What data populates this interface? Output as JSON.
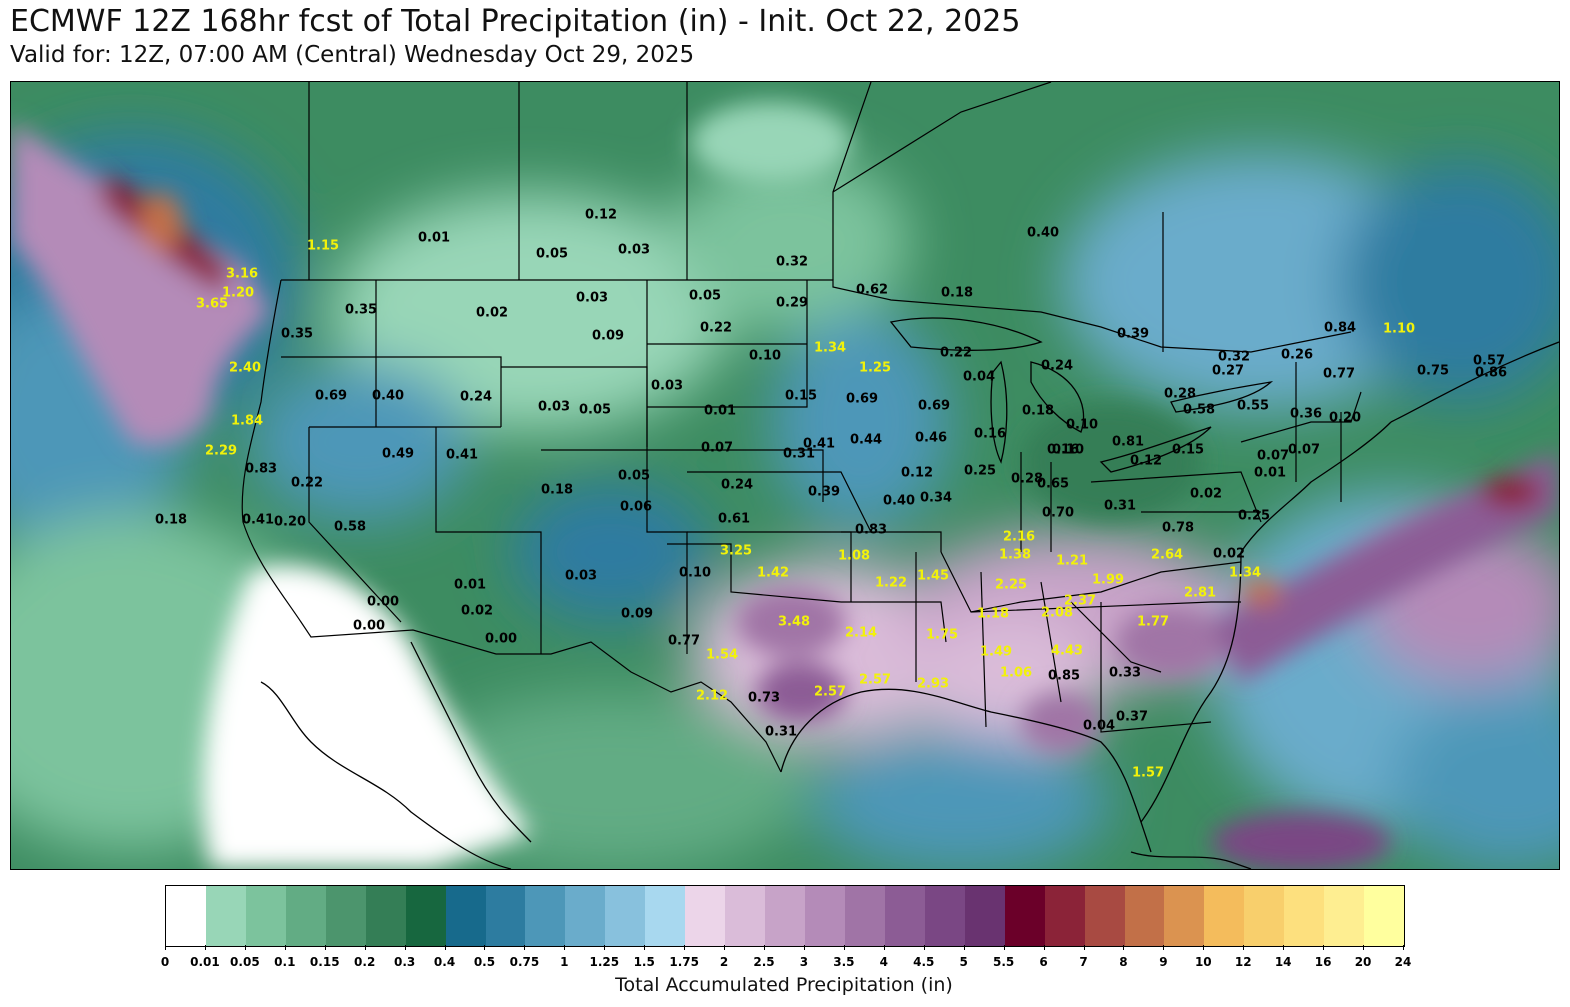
{
  "title": "ECMWF 12Z 168hr fcst of Total Precipitation (in) - Init. Oct 22, 2025",
  "subtitle": "Valid for: 12Z, 07:00 AM (Central) Wednesday Oct 29, 2025",
  "colorbar": {
    "label": "Total Accumulated Precipitation (in)",
    "ticks": [
      "0",
      "0.01",
      "0.05",
      "0.1",
      "0.15",
      "0.2",
      "0.3",
      "0.4",
      "0.5",
      "0.75",
      "1",
      "1.25",
      "1.5",
      "1.75",
      "2",
      "2.5",
      "3",
      "3.5",
      "4",
      "4.5",
      "5",
      "5.5",
      "6",
      "7",
      "8",
      "9",
      "10",
      "12",
      "14",
      "16",
      "20",
      "24"
    ],
    "colors": [
      "#ffffff",
      "#98d6b7",
      "#7cc39d",
      "#62ac84",
      "#4c956d",
      "#347e56",
      "#17673f",
      "#176a8c",
      "#2d7ca0",
      "#4d97b8",
      "#6aaccb",
      "#88c1dd",
      "#a8d8ef",
      "#ecd5e9",
      "#dabcd9",
      "#c7a3c8",
      "#b48bb8",
      "#a074a6",
      "#8c5c95",
      "#7a4784",
      "#693370",
      "#6b0029",
      "#8b2338",
      "#a84a42",
      "#c27048",
      "#db9350",
      "#f4bc5c",
      "#f8cf6c",
      "#fde07e",
      "#feee91",
      "#ffff9e"
    ]
  },
  "labels": [
    {
      "v": "0.12",
      "c": "dark"
    },
    {
      "v": "0.01",
      "c": "dark"
    },
    {
      "v": "1.15",
      "c": "bright"
    },
    {
      "v": "0.05",
      "c": "dark"
    },
    {
      "v": "0.03",
      "c": "dark"
    },
    {
      "v": "0.32",
      "c": "dark"
    },
    {
      "v": "0.40",
      "c": "dark"
    },
    {
      "v": "3.16",
      "c": "bright"
    },
    {
      "v": "1.20",
      "c": "bright"
    },
    {
      "v": "3.65",
      "c": "bright"
    },
    {
      "v": "0.35",
      "c": "dark"
    },
    {
      "v": "0.35",
      "c": "dark"
    },
    {
      "v": "0.03",
      "c": "dark"
    },
    {
      "v": "0.02",
      "c": "dark"
    },
    {
      "v": "0.05",
      "c": "dark"
    },
    {
      "v": "0.29",
      "c": "dark"
    },
    {
      "v": "0.62",
      "c": "dark"
    },
    {
      "v": "0.18",
      "c": "dark"
    },
    {
      "v": "0.39",
      "c": "dark"
    },
    {
      "v": "0.84",
      "c": "dark"
    },
    {
      "v": "1.10",
      "c": "bright"
    },
    {
      "v": "0.09",
      "c": "dark"
    },
    {
      "v": "0.22",
      "c": "dark"
    },
    {
      "v": "1.34",
      "c": "bright"
    },
    {
      "v": "0.22",
      "c": "dark"
    },
    {
      "v": "0.32",
      "c": "dark"
    },
    {
      "v": "0.26",
      "c": "dark"
    },
    {
      "v": "0.57",
      "c": "dark"
    },
    {
      "v": "2.40",
      "c": "bright"
    },
    {
      "v": "0.10",
      "c": "dark"
    },
    {
      "v": "1.25",
      "c": "bright"
    },
    {
      "v": "0.24",
      "c": "dark"
    },
    {
      "v": "0.27",
      "c": "dark"
    },
    {
      "v": "0.77",
      "c": "dark"
    },
    {
      "v": "0.75",
      "c": "dark"
    },
    {
      "v": "0.86",
      "c": "dark"
    },
    {
      "v": "0.03",
      "c": "dark"
    },
    {
      "v": "0.04",
      "c": "dark"
    },
    {
      "v": "0.69",
      "c": "dark"
    },
    {
      "v": "0.40",
      "c": "dark"
    },
    {
      "v": "0.24",
      "c": "dark"
    },
    {
      "v": "0.15",
      "c": "dark"
    },
    {
      "v": "0.69",
      "c": "dark"
    },
    {
      "v": "0.28",
      "c": "dark"
    },
    {
      "v": "0.03",
      "c": "dark"
    },
    {
      "v": "0.05",
      "c": "dark"
    },
    {
      "v": "0.01",
      "c": "dark"
    },
    {
      "v": "0.69",
      "c": "dark"
    },
    {
      "v": "0.18",
      "c": "dark"
    },
    {
      "v": "0.58",
      "c": "dark"
    },
    {
      "v": "0.55",
      "c": "dark"
    },
    {
      "v": "0.36",
      "c": "dark"
    },
    {
      "v": "0.20",
      "c": "dark"
    },
    {
      "v": "1.84",
      "c": "bright"
    },
    {
      "v": "0.16",
      "c": "dark"
    },
    {
      "v": "0.10",
      "c": "dark"
    },
    {
      "v": "0.41",
      "c": "dark"
    },
    {
      "v": "0.44",
      "c": "dark"
    },
    {
      "v": "0.46",
      "c": "dark"
    },
    {
      "v": "0.16",
      "c": "dark"
    },
    {
      "v": "0.81",
      "c": "dark"
    },
    {
      "v": "2.29",
      "c": "bright"
    },
    {
      "v": "0.49",
      "c": "dark"
    },
    {
      "v": "0.41",
      "c": "dark"
    },
    {
      "v": "0.07",
      "c": "dark"
    },
    {
      "v": "0.31",
      "c": "dark"
    },
    {
      "v": "0.10",
      "c": "dark"
    },
    {
      "v": "0.15",
      "c": "dark"
    },
    {
      "v": "0.07",
      "c": "dark"
    },
    {
      "v": "0.07",
      "c": "dark"
    },
    {
      "v": "0.83",
      "c": "dark"
    },
    {
      "v": "0.12",
      "c": "dark"
    },
    {
      "v": "0.12",
      "c": "dark"
    },
    {
      "v": "0.25",
      "c": "dark"
    },
    {
      "v": "0.28",
      "c": "dark"
    },
    {
      "v": "0.01",
      "c": "dark"
    },
    {
      "v": "0.22",
      "c": "dark"
    },
    {
      "v": "0.05",
      "c": "dark"
    },
    {
      "v": "0.65",
      "c": "dark"
    },
    {
      "v": "0.18",
      "c": "dark"
    },
    {
      "v": "0.24",
      "c": "dark"
    },
    {
      "v": "0.39",
      "c": "dark"
    },
    {
      "v": "0.40",
      "c": "dark"
    },
    {
      "v": "0.34",
      "c": "dark"
    },
    {
      "v": "0.02",
      "c": "dark"
    },
    {
      "v": "0.41",
      "c": "dark"
    },
    {
      "v": "0.20",
      "c": "dark"
    },
    {
      "v": "0.06",
      "c": "dark"
    },
    {
      "v": "0.31",
      "c": "dark"
    },
    {
      "v": "0.70",
      "c": "dark"
    },
    {
      "v": "0.58",
      "c": "dark"
    },
    {
      "v": "0.18",
      "c": "dark"
    },
    {
      "v": "0.61",
      "c": "dark"
    },
    {
      "v": "0.78",
      "c": "dark"
    },
    {
      "v": "0.25",
      "c": "dark"
    },
    {
      "v": "0.83",
      "c": "dark"
    },
    {
      "v": "2.16",
      "c": "bright"
    },
    {
      "v": "3.25",
      "c": "bright"
    },
    {
      "v": "1.08",
      "c": "bright"
    },
    {
      "v": "1.38",
      "c": "bright"
    },
    {
      "v": "1.21",
      "c": "bright"
    },
    {
      "v": "2.64",
      "c": "bright"
    },
    {
      "v": "0.02",
      "c": "dark"
    },
    {
      "v": "1.42",
      "c": "bright"
    },
    {
      "v": "0.10",
      "c": "dark"
    },
    {
      "v": "1.22",
      "c": "bright"
    },
    {
      "v": "1.45",
      "c": "bright"
    },
    {
      "v": "2.25",
      "c": "bright"
    },
    {
      "v": "1.99",
      "c": "bright"
    },
    {
      "v": "1.34",
      "c": "bright"
    },
    {
      "v": "0.03",
      "c": "dark"
    },
    {
      "v": "0.01",
      "c": "dark"
    },
    {
      "v": "2.37",
      "c": "bright"
    },
    {
      "v": "2.81",
      "c": "bright"
    },
    {
      "v": "0.00",
      "c": "dark"
    },
    {
      "v": "0.02",
      "c": "dark"
    },
    {
      "v": "1.18",
      "c": "bright"
    },
    {
      "v": "2.08",
      "c": "bright"
    },
    {
      "v": "0.09",
      "c": "dark"
    },
    {
      "v": "0.00",
      "c": "dark"
    },
    {
      "v": "3.48",
      "c": "bright"
    },
    {
      "v": "2.14",
      "c": "bright"
    },
    {
      "v": "1.75",
      "c": "bright"
    },
    {
      "v": "1.77",
      "c": "bright"
    },
    {
      "v": "0.00",
      "c": "dark"
    },
    {
      "v": "0.77",
      "c": "dark"
    },
    {
      "v": "1.54",
      "c": "bright"
    },
    {
      "v": "1.49",
      "c": "bright"
    },
    {
      "v": "4.43",
      "c": "bright"
    },
    {
      "v": "1.06",
      "c": "bright"
    },
    {
      "v": "0.85",
      "c": "dark"
    },
    {
      "v": "0.33",
      "c": "dark"
    },
    {
      "v": "2.57",
      "c": "bright"
    },
    {
      "v": "2.57",
      "c": "bright"
    },
    {
      "v": "2.93",
      "c": "bright"
    },
    {
      "v": "2.12",
      "c": "bright"
    },
    {
      "v": "0.73",
      "c": "dark"
    },
    {
      "v": "0.37",
      "c": "dark"
    },
    {
      "v": "0.04",
      "c": "dark"
    },
    {
      "v": "0.31",
      "c": "dark"
    },
    {
      "v": "1.57",
      "c": "bright"
    }
  ]
}
